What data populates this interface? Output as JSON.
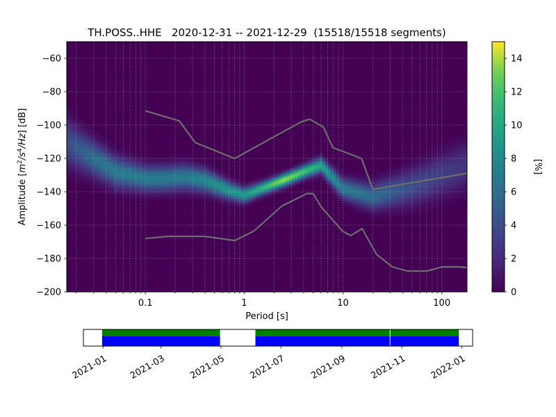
{
  "chart_data": {
    "type": "heatmap",
    "title": "TH.POSS..HHE   2020-12-31 -- 2021-12-29  (15518/15518 segments)",
    "xlabel": "Period [s]",
    "ylabel_parts": [
      "Amplitude [",
      "m",
      "2",
      "/s",
      "4",
      "/Hz",
      "] [dB]"
    ],
    "x_scale": "log",
    "xlim": [
      0.016,
      180
    ],
    "ylim": [
      -200,
      -50
    ],
    "x_ticks": [
      {
        "value": 0.1,
        "label": "0.1"
      },
      {
        "value": 1,
        "label": "1"
      },
      {
        "value": 10,
        "label": "10"
      },
      {
        "value": 100,
        "label": "100"
      }
    ],
    "y_ticks": [
      {
        "value": -60,
        "label": "−60"
      },
      {
        "value": -80,
        "label": "−80"
      },
      {
        "value": -100,
        "label": "−100"
      },
      {
        "value": -120,
        "label": "−120"
      },
      {
        "value": -140,
        "label": "−140"
      },
      {
        "value": -160,
        "label": "−160"
      },
      {
        "value": -180,
        "label": "−180"
      },
      {
        "value": -200,
        "label": "−200"
      }
    ],
    "grid": true,
    "colorbar": {
      "label": "[%]",
      "range": [
        0,
        15
      ],
      "ticks": [
        {
          "value": 0,
          "label": "0"
        },
        {
          "value": 2,
          "label": "2"
        },
        {
          "value": 4,
          "label": "4"
        },
        {
          "value": 6,
          "label": "6"
        },
        {
          "value": 8,
          "label": "8"
        },
        {
          "value": 10,
          "label": "10"
        },
        {
          "value": 12,
          "label": "12"
        },
        {
          "value": 14,
          "label": "14"
        }
      ],
      "colormap": "viridis"
    },
    "ppsd_mode": {
      "description": "density ridge (period, dB, peak %, width dB)",
      "points": [
        [
          0.016,
          -110,
          4,
          9
        ],
        [
          0.03,
          -120,
          6,
          7
        ],
        [
          0.05,
          -128,
          7,
          6
        ],
        [
          0.1,
          -132,
          7,
          5
        ],
        [
          0.15,
          -132,
          7,
          5
        ],
        [
          0.25,
          -131,
          7,
          5
        ],
        [
          0.4,
          -133,
          8,
          4.5
        ],
        [
          0.7,
          -139,
          9,
          3.5
        ],
        [
          1.0,
          -142,
          9,
          3
        ],
        [
          1.5,
          -138,
          11,
          2.5
        ],
        [
          2.5,
          -133,
          14,
          2.5
        ],
        [
          4.0,
          -128,
          12,
          2.5
        ],
        [
          6.0,
          -124,
          10,
          3
        ],
        [
          10,
          -138,
          7,
          4
        ],
        [
          20,
          -143,
          6,
          5
        ],
        [
          50,
          -137,
          4,
          7
        ],
        [
          180,
          -124,
          2.5,
          9
        ]
      ]
    },
    "series": [
      {
        "role": "noise model high",
        "color": "#6e6e6e",
        "points": [
          [
            0.1,
            -91.5
          ],
          [
            0.22,
            -97.4
          ],
          [
            0.32,
            -110.5
          ],
          [
            0.8,
            -120
          ],
          [
            3.8,
            -98
          ],
          [
            4.6,
            -96.5
          ],
          [
            6.3,
            -101
          ],
          [
            7.9,
            -113.5
          ],
          [
            15.4,
            -120
          ],
          [
            20,
            -138.5
          ],
          [
            354.8,
            -126
          ]
        ]
      },
      {
        "role": "noise model low",
        "color": "#6e6e6e",
        "points": [
          [
            0.1,
            -168
          ],
          [
            0.17,
            -166.7
          ],
          [
            0.4,
            -166.7
          ],
          [
            0.8,
            -169.2
          ],
          [
            1.24,
            -163.7
          ],
          [
            2.4,
            -148.6
          ],
          [
            4.3,
            -141.1
          ],
          [
            5.0,
            -141.1
          ],
          [
            6.0,
            -149
          ],
          [
            10,
            -163.8
          ],
          [
            12,
            -166.2
          ],
          [
            15.6,
            -162.1
          ],
          [
            21.9,
            -177.5
          ],
          [
            31.6,
            -185
          ],
          [
            45,
            -187.5
          ],
          [
            70,
            -187.5
          ],
          [
            101,
            -185
          ],
          [
            154,
            -185
          ],
          [
            328,
            -187.5
          ]
        ]
      }
    ]
  },
  "timeline": {
    "tick_labels": [
      "2021-01",
      "2021-03",
      "2021-05",
      "2021-07",
      "2021-09",
      "2021-11",
      "2022-01"
    ],
    "tick_dates": [
      "2021-01-01",
      "2021-03-01",
      "2021-05-01",
      "2021-07-01",
      "2021-09-01",
      "2021-11-01",
      "2022-01-01"
    ],
    "range": [
      "2020-12-12",
      "2022-01-12"
    ],
    "data_spans": [
      {
        "start": "2020-12-31",
        "end": "2021-04-30"
      },
      {
        "start": "2021-06-05",
        "end": "2021-12-29"
      }
    ],
    "gap_marks": [
      "2021-10-20"
    ],
    "colors": {
      "top": "#008000",
      "bottom": "#0000ff"
    }
  }
}
